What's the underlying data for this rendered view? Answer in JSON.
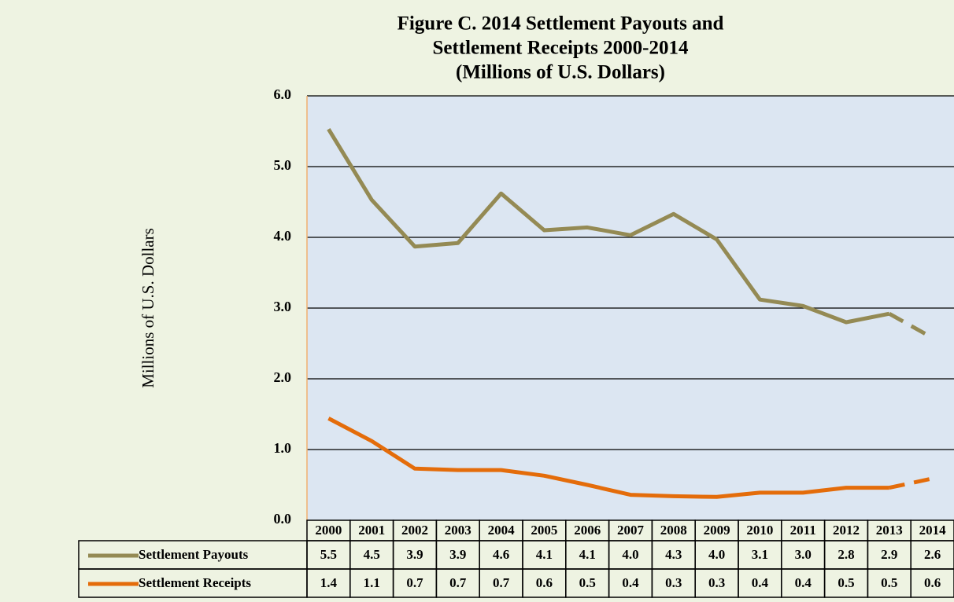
{
  "chart_data": {
    "type": "line",
    "title": [
      "Figure C.  2014 Settlement Payouts and",
      "Settlement Receipts 2000-2014",
      "(Millions of U.S. Dollars)"
    ],
    "y_label": "Millions of U.S. Dollars",
    "categories": [
      "2000",
      "2001",
      "2002",
      "2003",
      "2004",
      "2005",
      "2006",
      "2007",
      "2008",
      "2009",
      "2010",
      "2011",
      "2012",
      "2013",
      "2014"
    ],
    "series": [
      {
        "name": "Settlement Payouts",
        "color": "#948a54",
        "dashed_last_segment": true,
        "values": [
          5.53,
          4.53,
          3.87,
          3.92,
          4.62,
          4.1,
          4.14,
          4.03,
          4.33,
          3.97,
          3.12,
          3.03,
          2.8,
          2.92,
          2.58
        ],
        "value_labels": [
          "5.5",
          "4.5",
          "3.9",
          "3.9",
          "4.6",
          "4.1",
          "4.1",
          "4.0",
          "4.3",
          "4.0",
          "3.1",
          "3.0",
          "2.8",
          "2.9",
          "2.6"
        ]
      },
      {
        "name": "Settlement Receipts",
        "color": "#e46c0a",
        "dashed_last_segment": true,
        "values": [
          1.44,
          1.12,
          0.73,
          0.71,
          0.71,
          0.63,
          0.5,
          0.36,
          0.34,
          0.33,
          0.39,
          0.39,
          0.46,
          0.46,
          0.59
        ],
        "value_labels": [
          "1.4",
          "1.1",
          "0.7",
          "0.7",
          "0.7",
          "0.6",
          "0.5",
          "0.4",
          "0.3",
          "0.3",
          "0.4",
          "0.4",
          "0.5",
          "0.5",
          "0.6"
        ]
      }
    ],
    "ylim": [
      0,
      6
    ],
    "yticks": [
      {
        "value": 0,
        "label": "0.0"
      },
      {
        "value": 1,
        "label": "1.0"
      },
      {
        "value": 2,
        "label": "2.0"
      },
      {
        "value": 3,
        "label": "3.0"
      },
      {
        "value": 4,
        "label": "4.0"
      },
      {
        "value": 5,
        "label": "5.0"
      },
      {
        "value": 6,
        "label": "6.0"
      }
    ],
    "grid": true,
    "data_table": true
  }
}
